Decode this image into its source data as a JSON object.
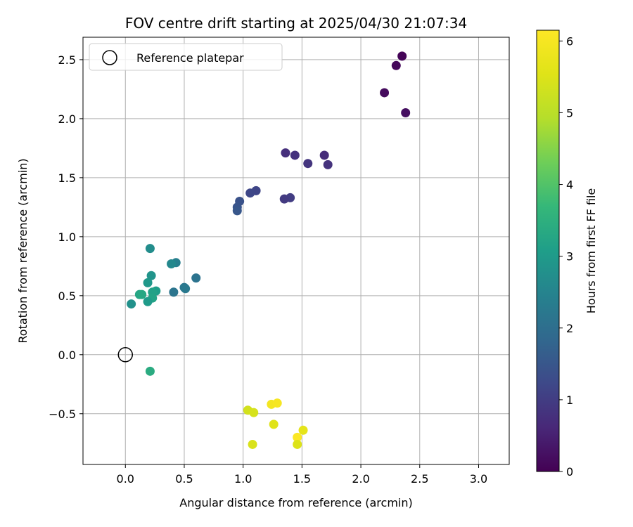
{
  "chart_data": {
    "type": "scatter",
    "title": "FOV centre drift starting at 2025/04/30 21:07:34",
    "xlabel": "Angular distance from reference (arcmin)",
    "ylabel": "Rotation from reference (arcmin)",
    "xlim": [
      -0.36,
      3.26
    ],
    "ylim": [
      -0.93,
      2.69
    ],
    "x_ticks": [
      0.0,
      0.5,
      1.0,
      1.5,
      2.0,
      2.5,
      3.0
    ],
    "x_tick_labels": [
      "0.0",
      "0.5",
      "1.0",
      "1.5",
      "2.0",
      "2.5",
      "3.0"
    ],
    "y_ticks": [
      -0.5,
      0.0,
      0.5,
      1.0,
      1.5,
      2.0,
      2.5
    ],
    "y_tick_labels": [
      "−0.5",
      "0.0",
      "0.5",
      "1.0",
      "1.5",
      "2.0",
      "2.5"
    ],
    "grid": true,
    "legend": {
      "position": "top-left",
      "entries": [
        {
          "label": "Reference platepar",
          "marker": "hollow-circle",
          "color": "#000000"
        }
      ]
    },
    "reference_point": {
      "x": 0.0,
      "y": 0.0
    },
    "colorbar": {
      "label": "Hours from first FF file",
      "range": [
        0,
        6.15
      ],
      "ticks": [
        0,
        1,
        2,
        3,
        4,
        5,
        6
      ],
      "tick_labels": [
        "0",
        "1",
        "2",
        "3",
        "4",
        "5",
        "6"
      ],
      "colormap": "viridis"
    },
    "points": [
      {
        "x": 2.35,
        "y": 2.53,
        "c": 0.05
      },
      {
        "x": 2.3,
        "y": 2.45,
        "c": 0.1
      },
      {
        "x": 2.2,
        "y": 2.22,
        "c": 0.15
      },
      {
        "x": 2.38,
        "y": 2.05,
        "c": 0.2
      },
      {
        "x": 1.36,
        "y": 1.71,
        "c": 0.75
      },
      {
        "x": 1.44,
        "y": 1.69,
        "c": 0.8
      },
      {
        "x": 1.69,
        "y": 1.69,
        "c": 0.7
      },
      {
        "x": 1.55,
        "y": 1.62,
        "c": 0.85
      },
      {
        "x": 1.72,
        "y": 1.61,
        "c": 0.8
      },
      {
        "x": 1.11,
        "y": 1.39,
        "c": 1.15
      },
      {
        "x": 1.06,
        "y": 1.37,
        "c": 1.2
      },
      {
        "x": 1.4,
        "y": 1.33,
        "c": 1.0
      },
      {
        "x": 1.35,
        "y": 1.32,
        "c": 0.95
      },
      {
        "x": 0.97,
        "y": 1.3,
        "c": 1.4
      },
      {
        "x": 0.95,
        "y": 1.25,
        "c": 1.45
      },
      {
        "x": 0.95,
        "y": 1.22,
        "c": 1.5
      },
      {
        "x": 0.6,
        "y": 0.65,
        "c": 2.1
      },
      {
        "x": 0.5,
        "y": 0.57,
        "c": 2.2
      },
      {
        "x": 0.51,
        "y": 0.56,
        "c": 2.25
      },
      {
        "x": 0.41,
        "y": 0.53,
        "c": 2.15
      },
      {
        "x": 0.43,
        "y": 0.78,
        "c": 2.4
      },
      {
        "x": 0.39,
        "y": 0.77,
        "c": 2.6
      },
      {
        "x": 0.21,
        "y": 0.9,
        "c": 2.7
      },
      {
        "x": 0.22,
        "y": 0.67,
        "c": 2.85
      },
      {
        "x": 0.19,
        "y": 0.61,
        "c": 2.95
      },
      {
        "x": 0.26,
        "y": 0.54,
        "c": 3.05
      },
      {
        "x": 0.23,
        "y": 0.53,
        "c": 3.15
      },
      {
        "x": 0.12,
        "y": 0.51,
        "c": 3.25
      },
      {
        "x": 0.14,
        "y": 0.51,
        "c": 3.3
      },
      {
        "x": 0.23,
        "y": 0.48,
        "c": 3.2
      },
      {
        "x": 0.19,
        "y": 0.45,
        "c": 3.0
      },
      {
        "x": 0.05,
        "y": 0.43,
        "c": 2.8
      },
      {
        "x": 0.21,
        "y": -0.14,
        "c": 3.4
      },
      {
        "x": 1.04,
        "y": -0.47,
        "c": 5.35
      },
      {
        "x": 1.09,
        "y": -0.49,
        "c": 5.4
      },
      {
        "x": 1.24,
        "y": -0.42,
        "c": 5.95
      },
      {
        "x": 1.29,
        "y": -0.41,
        "c": 6.0
      },
      {
        "x": 1.26,
        "y": -0.59,
        "c": 5.55
      },
      {
        "x": 1.51,
        "y": -0.64,
        "c": 5.65
      },
      {
        "x": 1.46,
        "y": -0.7,
        "c": 6.1
      },
      {
        "x": 1.46,
        "y": -0.76,
        "c": 5.5
      },
      {
        "x": 1.08,
        "y": -0.76,
        "c": 5.45
      }
    ]
  }
}
